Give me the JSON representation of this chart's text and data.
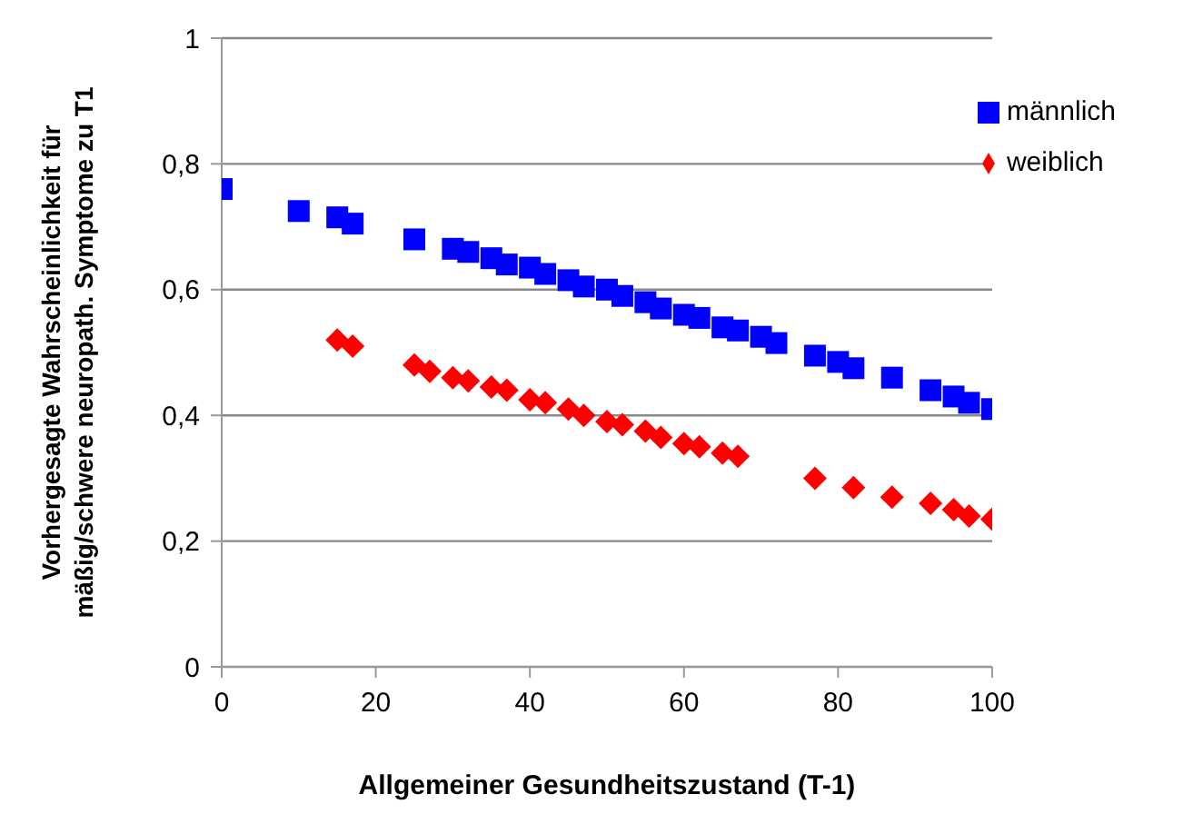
{
  "chart_data": {
    "type": "scatter",
    "xlabel": "Allgemeiner Gesundheitszustand (T-1)",
    "ylabel": "Vorhergesagte Wahrscheinlichkeit für mäßig/schwere neuropath. Symptome zu T1",
    "xlim": [
      0,
      100
    ],
    "xticks": [
      0,
      20,
      40,
      60,
      80,
      100
    ],
    "ylim": [
      0,
      1
    ],
    "yticks": [
      {
        "value": 0,
        "label": "0"
      },
      {
        "value": 0.2,
        "label": "0,2"
      },
      {
        "value": 0.4,
        "label": "0,4"
      },
      {
        "value": 0.6,
        "label": "0,6"
      },
      {
        "value": 0.8,
        "label": "0,8"
      },
      {
        "value": 1,
        "label": "1"
      }
    ],
    "grid": "y",
    "legend": "top right",
    "series": [
      {
        "name": "weiblich",
        "color": "#ff0000",
        "marker": "diamond",
        "x": [
          15,
          17,
          25,
          27,
          30,
          32,
          35,
          37,
          40,
          42,
          45,
          47,
          50,
          52,
          55,
          57,
          60,
          62,
          65,
          67,
          77,
          82,
          87,
          92,
          95,
          97,
          100
        ],
        "values": [
          0.52,
          0.51,
          0.48,
          0.47,
          0.46,
          0.455,
          0.445,
          0.44,
          0.425,
          0.42,
          0.41,
          0.4,
          0.39,
          0.385,
          0.375,
          0.365,
          0.355,
          0.35,
          0.34,
          0.335,
          0.3,
          0.285,
          0.27,
          0.26,
          0.25,
          0.24,
          0.235
        ]
      },
      {
        "name": "männlich",
        "color": "#0000ff",
        "marker": "square",
        "x": [
          0,
          10,
          15,
          17,
          25,
          30,
          32,
          35,
          37,
          40,
          42,
          45,
          47,
          50,
          52,
          55,
          57,
          60,
          62,
          65,
          67,
          70,
          72,
          77,
          80,
          82,
          87,
          92,
          95,
          97,
          100
        ],
        "values": [
          0.76,
          0.725,
          0.715,
          0.705,
          0.68,
          0.665,
          0.66,
          0.65,
          0.64,
          0.635,
          0.625,
          0.615,
          0.605,
          0.6,
          0.59,
          0.58,
          0.57,
          0.56,
          0.555,
          0.54,
          0.535,
          0.525,
          0.515,
          0.495,
          0.485,
          0.475,
          0.46,
          0.44,
          0.43,
          0.42,
          0.41
        ]
      }
    ]
  }
}
